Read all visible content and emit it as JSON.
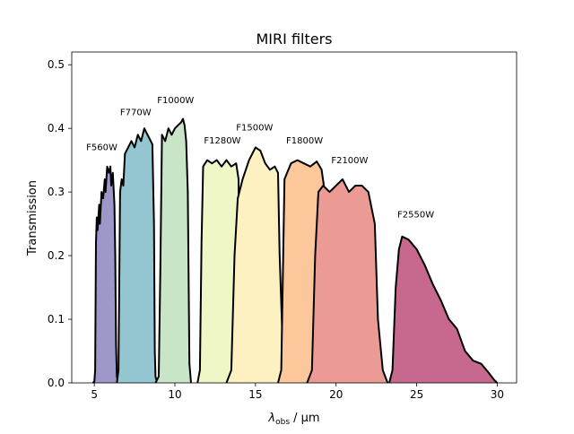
{
  "chart_data": {
    "type": "area",
    "title": "MIRI filters",
    "xlabel_main": "λ",
    "xlabel_sub": "obs",
    "xlabel_rest": " / μm",
    "ylabel": "Transmission",
    "xlim": [
      3.6,
      31.2
    ],
    "ylim": [
      0,
      0.52
    ],
    "xticks": [
      5,
      10,
      15,
      20,
      25,
      30
    ],
    "yticks": [
      0.0,
      0.1,
      0.2,
      0.3,
      0.4,
      0.5
    ],
    "ytick_labels": [
      "0.0",
      "0.1",
      "0.2",
      "0.3",
      "0.4",
      "0.5"
    ],
    "grid": false,
    "series": [
      {
        "name": "F560W",
        "color": "#9e97c9",
        "label_x": 4.5,
        "label_y": 0.366,
        "points": [
          [
            4.9,
            0
          ],
          [
            5.0,
            0.002
          ],
          [
            5.05,
            0.02
          ],
          [
            5.1,
            0.22
          ],
          [
            5.15,
            0.26
          ],
          [
            5.2,
            0.24
          ],
          [
            5.3,
            0.28
          ],
          [
            5.35,
            0.25
          ],
          [
            5.45,
            0.3
          ],
          [
            5.55,
            0.29
          ],
          [
            5.65,
            0.32
          ],
          [
            5.7,
            0.3
          ],
          [
            5.8,
            0.34
          ],
          [
            5.9,
            0.33
          ],
          [
            6.0,
            0.34
          ],
          [
            6.05,
            0.31
          ],
          [
            6.15,
            0.33
          ],
          [
            6.25,
            0.28
          ],
          [
            6.3,
            0.2
          ],
          [
            6.35,
            0.06
          ],
          [
            6.4,
            0.01
          ],
          [
            6.5,
            0
          ]
        ]
      },
      {
        "name": "F770W",
        "color": "#94c6d2",
        "label_x": 6.6,
        "label_y": 0.421,
        "points": [
          [
            6.4,
            0
          ],
          [
            6.5,
            0.02
          ],
          [
            6.6,
            0.3
          ],
          [
            6.7,
            0.32
          ],
          [
            6.8,
            0.31
          ],
          [
            6.9,
            0.36
          ],
          [
            7.1,
            0.37
          ],
          [
            7.3,
            0.38
          ],
          [
            7.5,
            0.37
          ],
          [
            7.7,
            0.39
          ],
          [
            7.9,
            0.38
          ],
          [
            8.1,
            0.4
          ],
          [
            8.3,
            0.39
          ],
          [
            8.5,
            0.38
          ],
          [
            8.6,
            0.375
          ],
          [
            8.7,
            0.25
          ],
          [
            8.75,
            0.05
          ],
          [
            8.8,
            0.01
          ],
          [
            8.9,
            0
          ]
        ]
      },
      {
        "name": "F1000W",
        "color": "#c8e6c7",
        "label_x": 8.9,
        "label_y": 0.44,
        "points": [
          [
            8.8,
            0
          ],
          [
            9.0,
            0.01
          ],
          [
            9.1,
            0.18
          ],
          [
            9.2,
            0.39
          ],
          [
            9.4,
            0.38
          ],
          [
            9.6,
            0.4
          ],
          [
            9.8,
            0.39
          ],
          [
            10.0,
            0.4
          ],
          [
            10.2,
            0.405
          ],
          [
            10.4,
            0.41
          ],
          [
            10.5,
            0.415
          ],
          [
            10.6,
            0.405
          ],
          [
            10.7,
            0.38
          ],
          [
            10.8,
            0.3
          ],
          [
            10.9,
            0.03
          ],
          [
            11.0,
            0
          ]
        ]
      },
      {
        "name": "F1280W",
        "color": "#f0f7c6",
        "label_x": 11.8,
        "label_y": 0.376,
        "points": [
          [
            11.4,
            0
          ],
          [
            11.55,
            0.02
          ],
          [
            11.65,
            0.22
          ],
          [
            11.75,
            0.34
          ],
          [
            12.0,
            0.35
          ],
          [
            12.3,
            0.345
          ],
          [
            12.6,
            0.35
          ],
          [
            12.9,
            0.34
          ],
          [
            13.2,
            0.35
          ],
          [
            13.5,
            0.34
          ],
          [
            13.8,
            0.345
          ],
          [
            13.95,
            0.32
          ],
          [
            14.0,
            0.08
          ],
          [
            14.1,
            0.01
          ],
          [
            14.2,
            0
          ]
        ]
      },
      {
        "name": "F1500W",
        "color": "#fdf0c1",
        "label_x": 13.8,
        "label_y": 0.397,
        "points": [
          [
            13.2,
            0
          ],
          [
            13.5,
            0.02
          ],
          [
            13.7,
            0.2
          ],
          [
            13.9,
            0.29
          ],
          [
            14.2,
            0.32
          ],
          [
            14.6,
            0.35
          ],
          [
            15.0,
            0.37
          ],
          [
            15.3,
            0.365
          ],
          [
            15.6,
            0.345
          ],
          [
            15.9,
            0.335
          ],
          [
            16.2,
            0.34
          ],
          [
            16.4,
            0.33
          ],
          [
            16.5,
            0.2
          ],
          [
            16.7,
            0.05
          ],
          [
            16.9,
            0.005
          ],
          [
            17.0,
            0
          ]
        ]
      },
      {
        "name": "F1800W",
        "color": "#fbc79b",
        "label_x": 16.9,
        "label_y": 0.376,
        "points": [
          [
            16.4,
            0
          ],
          [
            16.6,
            0.02
          ],
          [
            16.8,
            0.32
          ],
          [
            17.2,
            0.345
          ],
          [
            17.6,
            0.35
          ],
          [
            18.0,
            0.345
          ],
          [
            18.4,
            0.34
          ],
          [
            18.8,
            0.348
          ],
          [
            19.1,
            0.335
          ],
          [
            19.3,
            0.3
          ],
          [
            19.5,
            0.2
          ],
          [
            19.7,
            0.05
          ],
          [
            19.9,
            0.01
          ],
          [
            20.0,
            0
          ]
        ]
      },
      {
        "name": "F2100W",
        "color": "#eb9b93",
        "label_x": 19.7,
        "label_y": 0.345,
        "points": [
          [
            18.2,
            0
          ],
          [
            18.5,
            0.02
          ],
          [
            18.7,
            0.2
          ],
          [
            18.9,
            0.3
          ],
          [
            19.2,
            0.31
          ],
          [
            19.6,
            0.3
          ],
          [
            20.0,
            0.31
          ],
          [
            20.4,
            0.32
          ],
          [
            20.8,
            0.3
          ],
          [
            21.2,
            0.31
          ],
          [
            21.6,
            0.31
          ],
          [
            22.0,
            0.3
          ],
          [
            22.4,
            0.25
          ],
          [
            22.6,
            0.1
          ],
          [
            22.9,
            0.02
          ],
          [
            23.2,
            0
          ]
        ]
      },
      {
        "name": "F2550W",
        "color": "#c7698f",
        "label_x": 23.8,
        "label_y": 0.26,
        "points": [
          [
            23.3,
            0
          ],
          [
            23.5,
            0.02
          ],
          [
            23.7,
            0.15
          ],
          [
            23.9,
            0.21
          ],
          [
            24.1,
            0.23
          ],
          [
            24.5,
            0.225
          ],
          [
            25.0,
            0.21
          ],
          [
            25.5,
            0.185
          ],
          [
            26.0,
            0.155
          ],
          [
            26.5,
            0.13
          ],
          [
            27.0,
            0.1
          ],
          [
            27.5,
            0.085
          ],
          [
            28.0,
            0.05
          ],
          [
            28.5,
            0.035
          ],
          [
            29.0,
            0.03
          ],
          [
            29.5,
            0.015
          ],
          [
            29.8,
            0.005
          ],
          [
            30.0,
            0
          ]
        ]
      }
    ]
  }
}
